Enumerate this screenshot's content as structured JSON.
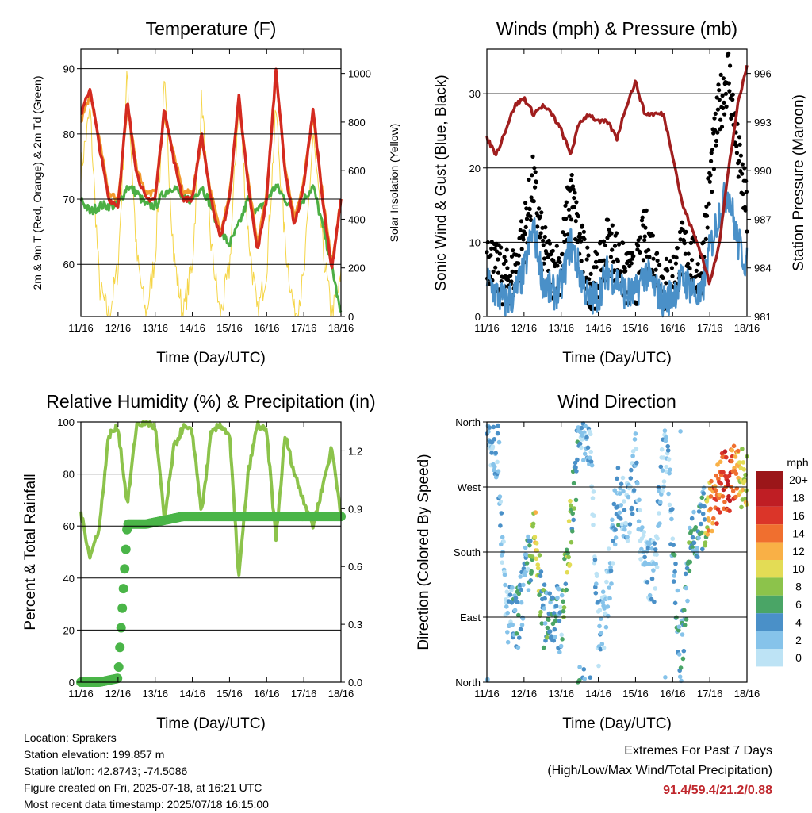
{
  "time_ticks": [
    "11/16",
    "12/16",
    "13/16",
    "14/16",
    "15/16",
    "16/16",
    "17/16",
    "18/16"
  ],
  "xlabel": "Time (Day/UTC)",
  "panels": {
    "temperature": {
      "title": "Temperature (F)",
      "ylabel_left": "2m & 9m T (Red, Orange) & 2m Td (Green)",
      "ylabel_right": "Solar Insolation (Yellow)",
      "left_ticks": [
        "60",
        "70",
        "80",
        "90"
      ],
      "right_ticks": [
        "0",
        "200",
        "400",
        "600",
        "800",
        "1000"
      ]
    },
    "winds": {
      "title": "Winds (mph) & Pressure (mb)",
      "ylabel_left": "Sonic Wind & Gust (Blue, Black)",
      "ylabel_right": "Station Pressure (Maroon)",
      "left_ticks": [
        "0",
        "10",
        "20",
        "30"
      ],
      "right_ticks": [
        "981",
        "984",
        "987",
        "990",
        "993",
        "996"
      ]
    },
    "humidity": {
      "title": "Relative Humidity (%) & Precipitation (in)",
      "ylabel_left": "Percent & Total Rainfall",
      "left_ticks": [
        "0",
        "20",
        "40",
        "60",
        "80",
        "100"
      ],
      "right_ticks": [
        "0.0",
        "0.3",
        "0.6",
        "0.9",
        "1.2"
      ]
    },
    "direction": {
      "title": "Wind Direction",
      "ylabel_left": "Direction (Colored By Speed)",
      "left_ticks": [
        "North",
        "East",
        "South",
        "West",
        "North"
      ],
      "legend_title": "mph",
      "legend_labels": [
        "0",
        "2",
        "4",
        "6",
        "8",
        "10",
        "12",
        "14",
        "16",
        "18",
        "20+"
      ],
      "legend_colors": [
        "#bde3f5",
        "#86c3ea",
        "#4a90c8",
        "#4aa566",
        "#8cc34b",
        "#e3dc55",
        "#f9b046",
        "#f06f2f",
        "#db3529",
        "#bf1e24",
        "#9b1619"
      ]
    }
  },
  "info": {
    "location": "Location: Sprakers",
    "elevation": "Station elevation: 199.857 m",
    "latlon": "Station lat/lon: 42.8743; -74.5086",
    "created": "Figure created on Fri, 2025-07-18, at 16:21 UTC",
    "recent": "Most recent data timestamp: 2025/07/18 16:15:00"
  },
  "extremes": {
    "line1": "Extremes For Past 7 Days",
    "line2": "(High/Low/Max Wind/Total Precipitation)",
    "values": "91.4/59.4/21.2/0.88"
  },
  "chart_data": [
    {
      "type": "line",
      "title": "Temperature (F)",
      "xlabel": "Time (Day/UTC)",
      "ylabel": "2m & 9m T (Red, Orange) & 2m Td (Green)",
      "y2label": "Solar Insolation (Yellow)",
      "x": [
        11.0,
        11.25,
        11.5,
        11.75,
        12.0,
        12.25,
        12.5,
        12.75,
        13.0,
        13.25,
        13.5,
        13.75,
        14.0,
        14.25,
        14.5,
        14.75,
        15.0,
        15.25,
        15.5,
        15.75,
        16.0,
        16.25,
        16.5,
        16.75,
        17.0,
        17.25,
        17.5,
        17.75,
        18.0
      ],
      "ylim": [
        52,
        93
      ],
      "y2lim": [
        0,
        1100
      ],
      "series": [
        {
          "name": "2m T",
          "color": "#d42a20",
          "values": [
            83,
            87,
            78,
            70,
            69,
            85,
            74,
            70,
            70,
            84,
            76,
            70,
            70,
            80,
            70,
            64,
            70,
            86,
            72,
            62,
            70,
            90,
            74,
            66,
            72,
            84,
            70,
            59,
            70
          ]
        },
        {
          "name": "9m T",
          "color": "#f39a2e",
          "values": [
            82,
            86,
            79,
            71,
            70,
            84,
            75,
            71,
            71,
            83,
            77,
            71,
            71,
            79,
            71,
            65,
            71,
            85,
            73,
            63,
            71,
            89,
            75,
            67,
            73,
            83,
            71,
            60,
            70
          ]
        },
        {
          "name": "2m Td",
          "color": "#4caf45",
          "values": [
            70,
            68,
            69,
            69,
            69,
            72,
            71,
            69,
            69,
            71,
            72,
            70,
            70,
            72,
            69,
            65,
            63,
            66,
            70,
            68,
            70,
            72,
            70,
            68,
            70,
            72,
            66,
            60,
            52
          ]
        },
        {
          "name": "Solar Insolation",
          "axis": "right",
          "color": "#f5d547",
          "values": [
            600,
            850,
            120,
            0,
            200,
            1000,
            250,
            0,
            250,
            950,
            250,
            0,
            220,
            900,
            300,
            0,
            200,
            900,
            350,
            0,
            200,
            850,
            300,
            0,
            150,
            750,
            300,
            0,
            150
          ]
        }
      ]
    },
    {
      "type": "line",
      "title": "Winds (mph) & Pressure (mb)",
      "xlabel": "Time (Day/UTC)",
      "ylabel": "Sonic Wind & Gust (Blue, Black)",
      "y2label": "Station Pressure (Maroon)",
      "x": [
        11.0,
        11.25,
        11.5,
        11.75,
        12.0,
        12.25,
        12.5,
        12.75,
        13.0,
        13.25,
        13.5,
        13.75,
        14.0,
        14.25,
        14.5,
        14.75,
        15.0,
        15.25,
        15.5,
        15.75,
        16.0,
        16.25,
        16.5,
        16.75,
        17.0,
        17.25,
        17.5,
        17.75,
        18.0
      ],
      "ylim": [
        0,
        36
      ],
      "y2lim": [
        981,
        997.5
      ],
      "series": [
        {
          "name": "Sonic Wind",
          "color": "#4a90c8",
          "values": [
            5,
            3,
            2,
            3,
            6,
            12,
            5,
            3,
            4,
            10,
            6,
            2,
            3,
            6,
            5,
            3,
            3,
            6,
            4,
            2,
            3,
            5,
            4,
            2,
            9,
            14,
            17,
            10,
            7
          ]
        },
        {
          "name": "Gust",
          "color": "#000000",
          "values": [
            9,
            6,
            5,
            6,
            11,
            18,
            9,
            6,
            7,
            17,
            10,
            5,
            5,
            10,
            8,
            5,
            5,
            11,
            8,
            4,
            5,
            9,
            8,
            5,
            18,
            28,
            33,
            22,
            14
          ]
        },
        {
          "name": "Station Pressure",
          "axis": "right",
          "color": "#a01e1e",
          "values": [
            992.0,
            991.0,
            992.5,
            994.0,
            994.5,
            993.5,
            994.0,
            993.5,
            992.5,
            991.0,
            993.0,
            993.5,
            993.0,
            993.0,
            992.0,
            994.0,
            995.5,
            993.5,
            993.5,
            993.5,
            991.0,
            988.0,
            986.5,
            985.0,
            983.0,
            985.5,
            990.0,
            994.0,
            996.5
          ]
        }
      ]
    },
    {
      "type": "line",
      "title": "Relative Humidity (%) & Precipitation (in)",
      "xlabel": "Time (Day/UTC)",
      "ylabel": "Percent & Total Rainfall",
      "x": [
        11.0,
        11.25,
        11.5,
        11.75,
        12.0,
        12.25,
        12.5,
        12.75,
        13.0,
        13.25,
        13.5,
        13.75,
        14.0,
        14.25,
        14.5,
        14.75,
        15.0,
        15.25,
        15.5,
        15.75,
        16.0,
        16.25,
        16.5,
        16.75,
        17.0,
        17.25,
        17.5,
        17.75,
        18.0
      ],
      "ylim": [
        0,
        100
      ],
      "y2lim": [
        0.0,
        1.35
      ],
      "series": [
        {
          "name": "Relative Humidity",
          "color": "#8cc34b",
          "values": [
            65,
            48,
            60,
            95,
            98,
            68,
            99,
            100,
            98,
            62,
            90,
            98,
            96,
            65,
            95,
            99,
            95,
            40,
            80,
            99,
            96,
            55,
            95,
            80,
            70,
            60,
            75,
            90,
            65
          ]
        },
        {
          "name": "Total Precipitation",
          "axis": "right",
          "color": "#4ab548",
          "values": [
            0.0,
            0.0,
            0.0,
            0.01,
            0.02,
            0.82,
            0.82,
            0.82,
            0.83,
            0.84,
            0.85,
            0.86,
            0.86,
            0.86,
            0.86,
            0.86,
            0.86,
            0.86,
            0.86,
            0.86,
            0.86,
            0.86,
            0.86,
            0.86,
            0.86,
            0.86,
            0.86,
            0.86,
            0.86
          ]
        }
      ]
    },
    {
      "type": "scatter",
      "title": "Wind Direction",
      "xlabel": "Time (Day/UTC)",
      "ylabel": "Direction (Colored By Speed)",
      "ylim": [
        0,
        360
      ],
      "y_tick_labels": [
        "North",
        "East",
        "South",
        "West",
        "North"
      ],
      "color_by": "speed (mph)",
      "x": [
        11.1,
        11.3,
        11.5,
        11.8,
        12.1,
        12.3,
        12.5,
        12.8,
        13.0,
        13.2,
        13.5,
        13.8,
        14.0,
        14.2,
        14.5,
        14.8,
        15.0,
        15.2,
        15.5,
        15.8,
        16.0,
        16.2,
        16.5,
        16.8,
        17.0,
        17.3,
        17.5,
        17.8,
        18.0
      ],
      "y": [
        340,
        320,
        100,
        80,
        160,
        200,
        90,
        100,
        80,
        190,
        350,
        320,
        60,
        100,
        260,
        230,
        300,
        170,
        150,
        340,
        200,
        20,
        200,
        220,
        250,
        270,
        280,
        285,
        290
      ],
      "speed": [
        3,
        4,
        2,
        5,
        4,
        12,
        6,
        5,
        4,
        10,
        4,
        3,
        3,
        2,
        4,
        3,
        3,
        2,
        3,
        2,
        4,
        5,
        6,
        4,
        14,
        16,
        18,
        12,
        10
      ]
    }
  ]
}
